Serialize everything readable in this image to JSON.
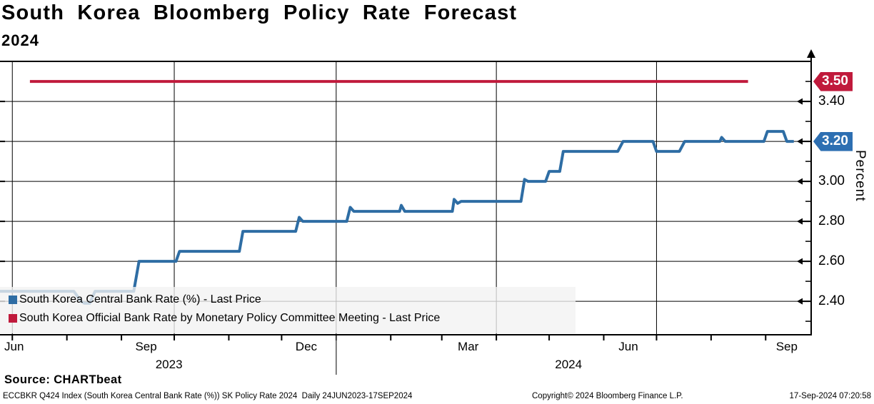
{
  "title": "South Korea Bloomberg Policy Rate Forecast",
  "subtitle": "2024",
  "source_label": "Source: CHARTbeat",
  "footer": {
    "left": "ECCBKR Q424 Index (South Korea Central Bank Rate (%)) SK Policy Rate 2024  Daily 24JUN2023-17SEP2024",
    "center": "Copyright© 2024 Bloomberg Finance L.P.",
    "right": "17-Sep-2024 07:20:58"
  },
  "colors": {
    "line_blue": "#2E6DA4",
    "line_red": "#C01A3C",
    "badge_blue": "#2D6FB2",
    "badge_red": "#C01A3C",
    "grid": "#000000",
    "legend_bg": "#F2F2F2"
  },
  "legend": [
    {
      "label": "South Korea Central Bank Rate (%) - Last Price",
      "color": "#2E6DA4"
    },
    {
      "label": "South Korea Official Bank Rate by Monetary Policy Committee Meeting - Last Price",
      "color": "#C01A3C"
    }
  ],
  "chart_data": {
    "type": "line",
    "title": "South Korea Bloomberg Policy Rate Forecast 2024",
    "xlabel": "",
    "ylabel": "Percent",
    "x_range": [
      "2023-06-24",
      "2024-09-17"
    ],
    "ylim": [
      2.23,
      3.6
    ],
    "grid": true,
    "legend_position": "bottom-left",
    "y_major_ticks": [
      3.4,
      3.2,
      3.0,
      2.8,
      2.6,
      2.4
    ],
    "y_minor_ticks": [
      3.5,
      3.3,
      3.1,
      2.9,
      2.7,
      2.5,
      2.3
    ],
    "x_month_labels": [
      {
        "label": "Jun",
        "anchor": "2023-07-02"
      },
      {
        "label": "Sep",
        "anchor": "2023-09-15"
      },
      {
        "label": "Dec",
        "anchor": "2023-12-15"
      },
      {
        "label": "Mar",
        "anchor": "2024-03-16"
      },
      {
        "label": "Jun",
        "anchor": "2024-06-15"
      },
      {
        "label": "Sep",
        "anchor": "2024-09-13"
      }
    ],
    "x_year_labels": [
      {
        "label": "2023",
        "anchor": "2023-09-28"
      },
      {
        "label": "2024",
        "anchor": "2024-05-12"
      }
    ],
    "month_tick_dates": [
      "2023-07-01",
      "2023-08-01",
      "2023-09-01",
      "2023-10-01",
      "2023-11-01",
      "2023-12-01",
      "2024-01-01",
      "2024-02-01",
      "2024-03-01",
      "2024-04-01",
      "2024-05-01",
      "2024-06-01",
      "2024-07-01",
      "2024-08-01",
      "2024-09-01"
    ],
    "quarter_gridline_dates": [
      "2023-07-01",
      "2023-10-01",
      "2024-01-01",
      "2024-04-01",
      "2024-07-01"
    ],
    "year_separator_date": "2024-01-01",
    "last_price_badges": [
      {
        "text": "3.50",
        "value": 3.5,
        "color": "#C01A3C"
      },
      {
        "text": "3.20",
        "value": 3.2,
        "color": "#2D6FB2"
      }
    ],
    "series": [
      {
        "name": "South Korea Central Bank Rate (%) - Last Price",
        "color": "#2E6DA4",
        "points": [
          [
            "2023-06-24",
            2.45
          ],
          [
            "2023-08-05",
            2.45
          ],
          [
            "2023-08-09",
            2.4
          ],
          [
            "2023-08-11",
            2.39
          ],
          [
            "2023-08-14",
            2.39
          ],
          [
            "2023-08-17",
            2.45
          ],
          [
            "2023-09-08",
            2.45
          ],
          [
            "2023-09-11",
            2.6
          ],
          [
            "2023-10-02",
            2.6
          ],
          [
            "2023-10-04",
            2.65
          ],
          [
            "2023-11-07",
            2.65
          ],
          [
            "2023-11-09",
            2.75
          ],
          [
            "2023-12-09",
            2.75
          ],
          [
            "2023-12-11",
            2.82
          ],
          [
            "2023-12-13",
            2.8
          ],
          [
            "2024-01-07",
            2.8
          ],
          [
            "2024-01-09",
            2.87
          ],
          [
            "2024-01-11",
            2.85
          ],
          [
            "2024-02-06",
            2.85
          ],
          [
            "2024-02-07",
            2.88
          ],
          [
            "2024-02-09",
            2.85
          ],
          [
            "2024-03-07",
            2.85
          ],
          [
            "2024-03-08",
            2.91
          ],
          [
            "2024-03-10",
            2.89
          ],
          [
            "2024-03-12",
            2.9
          ],
          [
            "2024-04-15",
            2.9
          ],
          [
            "2024-04-17",
            3.01
          ],
          [
            "2024-04-19",
            3.0
          ],
          [
            "2024-04-29",
            3.0
          ],
          [
            "2024-05-01",
            3.05
          ],
          [
            "2024-05-07",
            3.05
          ],
          [
            "2024-05-09",
            3.15
          ],
          [
            "2024-06-09",
            3.15
          ],
          [
            "2024-06-12",
            3.2
          ],
          [
            "2024-06-29",
            3.2
          ],
          [
            "2024-07-01",
            3.15
          ],
          [
            "2024-07-14",
            3.15
          ],
          [
            "2024-07-17",
            3.2
          ],
          [
            "2024-08-06",
            3.2
          ],
          [
            "2024-08-07",
            3.22
          ],
          [
            "2024-08-09",
            3.2
          ],
          [
            "2024-08-31",
            3.2
          ],
          [
            "2024-09-02",
            3.25
          ],
          [
            "2024-09-11",
            3.25
          ],
          [
            "2024-09-13",
            3.2
          ],
          [
            "2024-09-17",
            3.2
          ]
        ]
      },
      {
        "name": "South Korea Official Bank Rate by Monetary Policy Committee Meeting - Last Price",
        "color": "#C01A3C",
        "points": [
          [
            "2023-07-11",
            3.5
          ],
          [
            "2024-08-22",
            3.5
          ]
        ]
      }
    ]
  }
}
